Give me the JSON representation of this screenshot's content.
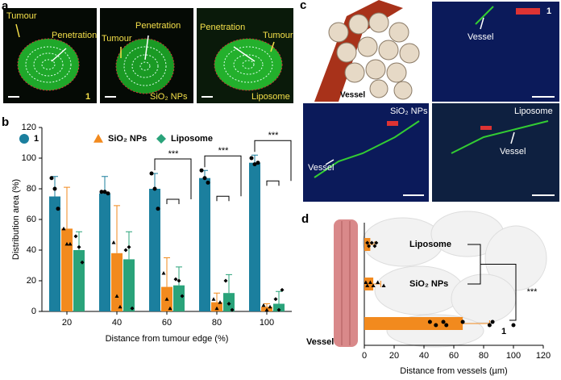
{
  "panels": {
    "a": {
      "letter": "a",
      "images": [
        {
          "labels": [
            "Tumour",
            "Penetration"
          ],
          "tag": "1"
        },
        {
          "labels": [
            "Tumour",
            "Penetration"
          ],
          "tag": "SiO₂ NPs"
        },
        {
          "labels": [
            "Penetration",
            "Tumour"
          ],
          "tag": "Liposome"
        }
      ]
    },
    "c": {
      "letter": "c",
      "images": [
        {
          "vessel": "Vessel"
        },
        {
          "tag": "1",
          "vessel": "Vessel"
        },
        {
          "tag": "SiO₂ NPs",
          "vessel": "Vessel"
        },
        {
          "tag": "Liposome",
          "vessel": "Vessel"
        }
      ]
    }
  },
  "chart_data": [
    {
      "type": "bar",
      "panel": "b",
      "xlabel": "Distance from tumour edge (%)",
      "ylabel": "Distribution area (%)",
      "categories": [
        "20",
        "40",
        "60",
        "80",
        "100"
      ],
      "ylim": [
        0,
        120
      ],
      "yticks": [
        0,
        20,
        40,
        60,
        80,
        100,
        120
      ],
      "significance": [
        null,
        null,
        "***",
        "***",
        "***"
      ],
      "series": [
        {
          "name": "1",
          "color": "#1b7f9e",
          "marker": "circle",
          "values": [
            75,
            77,
            80,
            87,
            97
          ],
          "errors": [
            13,
            11,
            10,
            5,
            5
          ],
          "points": [
            [
              87,
              80,
              67
            ],
            [
              78,
              78,
              77
            ],
            [
              90,
              80,
              67
            ],
            [
              92,
              87,
              84
            ],
            [
              100,
              96,
              97
            ]
          ]
        },
        {
          "name": "SiO₂ NPs",
          "color": "#f28a1e",
          "marker": "triangle",
          "values": [
            54,
            38,
            16,
            6,
            3
          ],
          "errors": [
            27,
            31,
            19,
            6,
            2
          ],
          "points": [
            [
              54,
              44,
              44
            ],
            [
              45,
              10,
              3
            ],
            [
              25,
              8,
              2
            ],
            [
              8,
              2,
              6
            ],
            [
              4,
              1,
              3
            ]
          ]
        },
        {
          "name": "Liposome",
          "color": "#2aa37a",
          "marker": "diamond",
          "values": [
            40,
            34,
            17,
            12,
            5
          ],
          "errors": [
            12,
            18,
            12,
            12,
            8
          ],
          "points": [
            [
              49,
              42,
              32
            ],
            [
              40,
              42,
              2
            ],
            [
              21,
              20,
              10
            ],
            [
              20,
              5,
              1
            ],
            [
              8,
              1,
              14
            ]
          ]
        }
      ]
    },
    {
      "type": "barh",
      "panel": "d",
      "xlabel": "Distance from vessels (µm)",
      "annotation": "Vessel",
      "significance": "***",
      "categories": [
        "Liposome",
        "SiO₂ NPs",
        "1"
      ],
      "values": [
        4,
        6,
        66
      ],
      "errors": [
        3,
        5,
        18
      ],
      "color": "#f28a1e",
      "points": [
        [
          2,
          3,
          5,
          7,
          8
        ],
        [
          1,
          2,
          4,
          6,
          9,
          13
        ],
        [
          44,
          48,
          53,
          55,
          66,
          84,
          86,
          100
        ]
      ],
      "xlim": [
        0,
        120
      ],
      "xticks": [
        0,
        20,
        40,
        60,
        80,
        100,
        120
      ]
    }
  ]
}
